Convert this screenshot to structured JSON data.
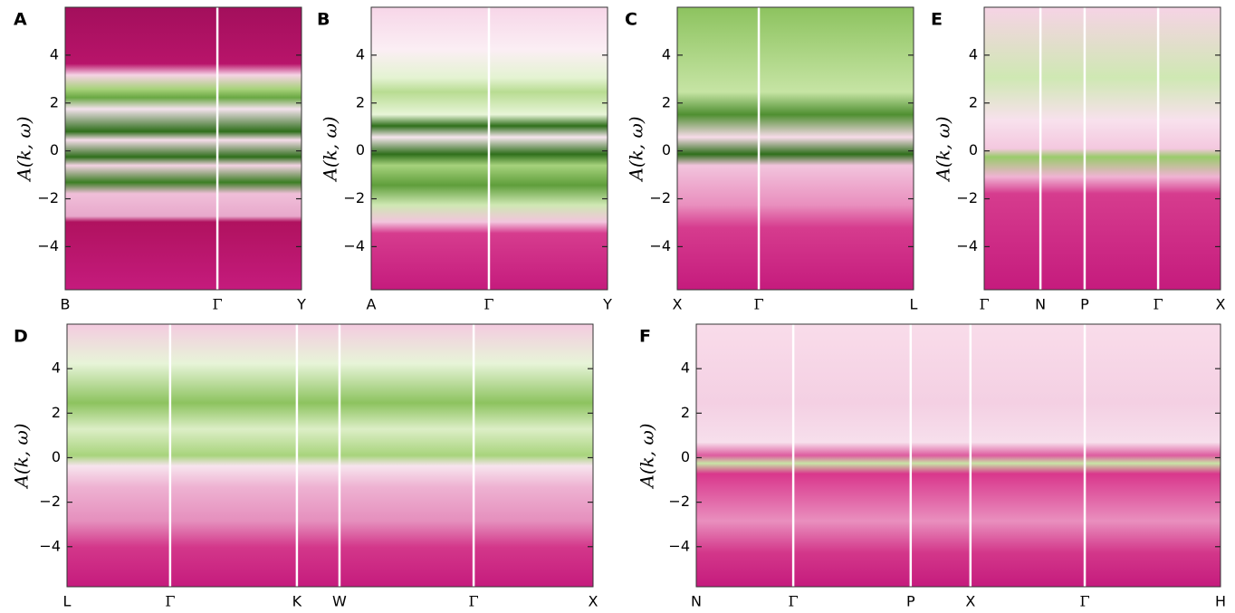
{
  "chart_data": [
    {
      "type": "heatmap",
      "title": "A",
      "y_label": "A(k, ω)",
      "ylim": [
        -5.8,
        6
      ],
      "yticks": [
        4,
        2,
        0,
        {
          "value": -2,
          "label": "−2"
        },
        {
          "value": -4,
          "label": "−4"
        }
      ],
      "xlim": [
        0,
        1
      ],
      "xticks": [
        {
          "value": 0,
          "label": "B"
        },
        {
          "value": 0.644,
          "label": "Γ"
        },
        {
          "value": 1,
          "label": "Y"
        }
      ]
    },
    {
      "type": "heatmap",
      "title": "B",
      "y_label": "A(k, ω)",
      "ylim": [
        -5.8,
        6
      ],
      "yticks": [
        4,
        2,
        0,
        {
          "value": -2,
          "label": "−2"
        },
        {
          "value": -4,
          "label": "−4"
        }
      ],
      "xlim": [
        0,
        1
      ],
      "xticks": [
        {
          "value": 0,
          "label": "A"
        },
        {
          "value": 0.498,
          "label": "Γ"
        },
        {
          "value": 1,
          "label": "Y"
        }
      ]
    },
    {
      "type": "heatmap",
      "title": "C",
      "y_label": "A(k, ω)",
      "ylim": [
        -5.8,
        6
      ],
      "yticks": [
        4,
        2,
        0,
        {
          "value": -2,
          "label": "−2"
        },
        {
          "value": -4,
          "label": "−4"
        }
      ],
      "xlim": [
        0,
        1
      ],
      "xticks": [
        {
          "value": 0,
          "label": "X"
        },
        {
          "value": 0.345,
          "label": "Γ"
        },
        {
          "value": 1,
          "label": "L"
        }
      ]
    },
    {
      "type": "heatmap",
      "title": "E",
      "y_label": "A(k, ω)",
      "ylim": [
        -5.8,
        6
      ],
      "yticks": [
        4,
        2,
        0,
        {
          "value": -2,
          "label": "−2"
        },
        {
          "value": -4,
          "label": "−4"
        }
      ],
      "xlim": [
        0,
        1
      ],
      "xticks": [
        {
          "value": 0,
          "label": "Γ"
        },
        {
          "value": 0.238,
          "label": "N"
        },
        {
          "value": 0.425,
          "label": "P"
        },
        {
          "value": 0.736,
          "label": "Γ"
        },
        {
          "value": 1,
          "label": "X"
        }
      ]
    },
    {
      "type": "heatmap",
      "title": "D",
      "y_label": "A(k, ω)",
      "ylim": [
        -5.8,
        6
      ],
      "yticks": [
        4,
        2,
        0,
        {
          "value": -2,
          "label": "−2"
        },
        {
          "value": -4,
          "label": "−4"
        }
      ],
      "xlim": [
        0,
        1
      ],
      "xticks": [
        {
          "value": 0,
          "label": "L"
        },
        {
          "value": 0.196,
          "label": "Γ"
        },
        {
          "value": 0.437,
          "label": "K"
        },
        {
          "value": 0.518,
          "label": "W"
        },
        {
          "value": 0.773,
          "label": "Γ"
        },
        {
          "value": 1,
          "label": "X"
        }
      ]
    },
    {
      "type": "heatmap",
      "title": "F",
      "y_label": "A(k, ω)",
      "ylim": [
        -5.8,
        6
      ],
      "yticks": [
        4,
        2,
        0,
        {
          "value": -2,
          "label": "−2"
        },
        {
          "value": -4,
          "label": "−4"
        }
      ],
      "xlim": [
        0,
        1
      ],
      "xticks": [
        {
          "value": 0,
          "label": "N"
        },
        {
          "value": 0.185,
          "label": "Γ"
        },
        {
          "value": 0.409,
          "label": "P"
        },
        {
          "value": 0.523,
          "label": "X"
        },
        {
          "value": 0.741,
          "label": "Γ"
        },
        {
          "value": 1,
          "label": "H"
        }
      ]
    }
  ]
}
